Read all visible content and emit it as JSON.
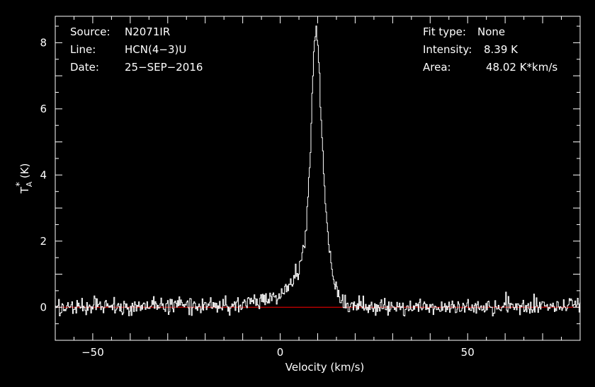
{
  "chart_data": {
    "type": "line",
    "title": "",
    "xlabel": "Velocity (km/s)",
    "ylabel_main": "T",
    "ylabel_sub": "A",
    "ylabel_sup": "*",
    "ylabel_unit": "(K)",
    "xlim": [
      -60,
      80
    ],
    "ylim": [
      -1,
      8.8
    ],
    "x_ticks": [
      {
        "value": -50,
        "label": "−50"
      },
      {
        "value": 0,
        "label": "0"
      },
      {
        "value": 50,
        "label": "50"
      }
    ],
    "y_ticks": [
      {
        "value": 0,
        "label": "0"
      },
      {
        "value": 2,
        "label": "2"
      },
      {
        "value": 4,
        "label": "4"
      },
      {
        "value": 6,
        "label": "6"
      },
      {
        "value": 8,
        "label": "8"
      }
    ],
    "grid": false,
    "baseline": {
      "y": 0,
      "color": "#ff0000"
    },
    "series": [
      {
        "line_color": "#ffffff",
        "x": [
          -60,
          -40,
          -20,
          -10,
          -5,
          0,
          2,
          4,
          5,
          6,
          7,
          7.5,
          8,
          8.5,
          9,
          9.5,
          10,
          10.5,
          11,
          12,
          13,
          14,
          15,
          16,
          18,
          20,
          25,
          30,
          40,
          50,
          60,
          70,
          80
        ],
        "y": [
          0.0,
          0.0,
          0.05,
          0.1,
          0.2,
          0.35,
          0.55,
          0.9,
          1.2,
          1.6,
          2.5,
          3.5,
          4.5,
          6.2,
          7.9,
          8.39,
          8.0,
          7.0,
          5.5,
          3.2,
          1.9,
          1.0,
          0.5,
          0.25,
          0.1,
          0.05,
          0.0,
          0.0,
          0.0,
          0.0,
          0.0,
          0.0,
          0.0
        ],
        "noise_rms": 0.13
      }
    ],
    "annotations": {
      "left": [
        {
          "key": "Source:",
          "value": "N2071IR"
        },
        {
          "key": "Line:",
          "value": "HCN(4−3)U"
        },
        {
          "key": "Date:",
          "value": "25−SEP−2016"
        }
      ],
      "right": [
        {
          "key": "Fit type:",
          "value": "None"
        },
        {
          "key": "Intensity:",
          "value": "8.39 K"
        },
        {
          "key": "Area:",
          "value": "48.02 K*km/s"
        }
      ]
    }
  }
}
